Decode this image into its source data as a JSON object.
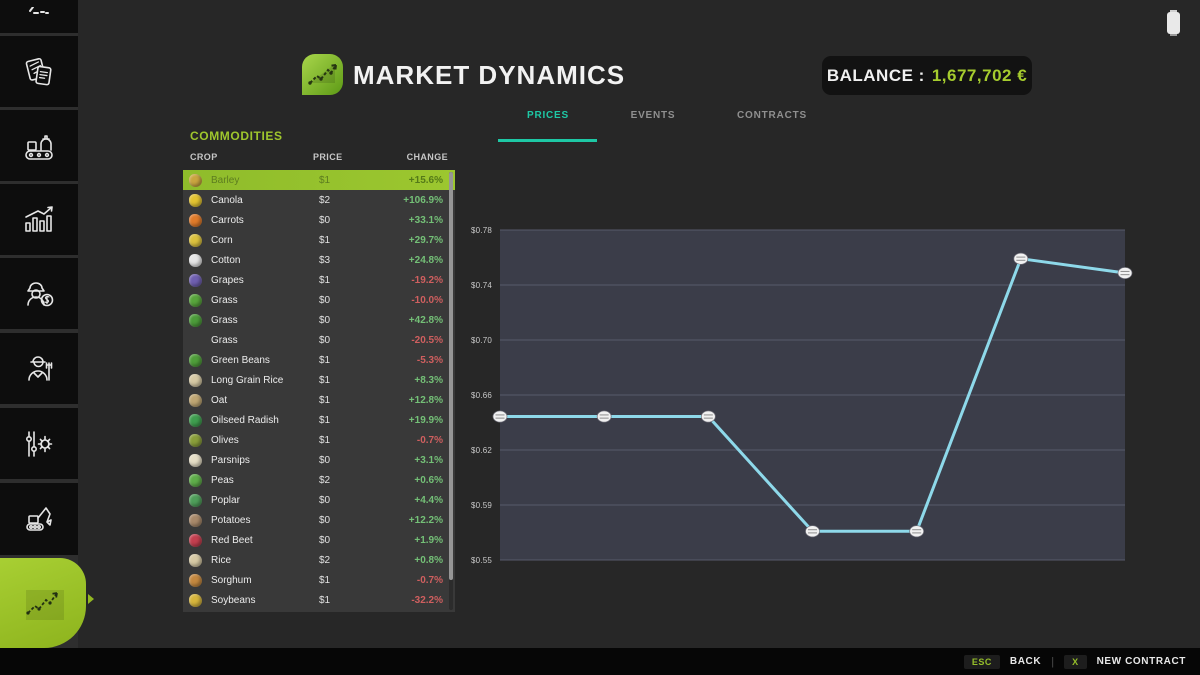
{
  "header": {
    "title": "MARKET DYNAMICS",
    "balance_label": "BALANCE :",
    "balance_value": "1,677,702 €"
  },
  "tabs": [
    {
      "label": "PRICES",
      "active": true
    },
    {
      "label": "EVENTS",
      "active": false
    },
    {
      "label": "CONTRACTS",
      "active": false
    }
  ],
  "commodities": {
    "section_title": "COMMODITIES",
    "columns": [
      "CROP",
      "PRICE",
      "CHANGE"
    ],
    "rows": [
      {
        "name": "Barley",
        "price": "$1",
        "change": "+15.6%",
        "direction": "up",
        "selected": true,
        "icon_color": "#c9a53f"
      },
      {
        "name": "Canola",
        "price": "$2",
        "change": "+106.9%",
        "direction": "up",
        "selected": false,
        "icon_color": "#e3c431"
      },
      {
        "name": "Carrots",
        "price": "$0",
        "change": "+33.1%",
        "direction": "up",
        "selected": false,
        "icon_color": "#e07b2a"
      },
      {
        "name": "Corn",
        "price": "$1",
        "change": "+29.7%",
        "direction": "up",
        "selected": false,
        "icon_color": "#dcc23e"
      },
      {
        "name": "Cotton",
        "price": "$3",
        "change": "+24.8%",
        "direction": "up",
        "selected": false,
        "icon_color": "#e6e6e6"
      },
      {
        "name": "Grapes",
        "price": "$1",
        "change": "-19.2%",
        "direction": "down",
        "selected": false,
        "icon_color": "#6f5fb0"
      },
      {
        "name": "Grass",
        "price": "$0",
        "change": "-10.0%",
        "direction": "down",
        "selected": false,
        "icon_color": "#58a53c"
      },
      {
        "name": "Grass",
        "price": "$0",
        "change": "+42.8%",
        "direction": "up",
        "selected": false,
        "icon_color": "#4c9c3a"
      },
      {
        "name": "Grass",
        "price": "$0",
        "change": "-20.5%",
        "direction": "down",
        "selected": false,
        "icon_color": null
      },
      {
        "name": "Green Beans",
        "price": "$1",
        "change": "-5.3%",
        "direction": "down",
        "selected": false,
        "icon_color": "#4f9e3a"
      },
      {
        "name": "Long Grain Rice",
        "price": "$1",
        "change": "+8.3%",
        "direction": "up",
        "selected": false,
        "icon_color": "#d6c9a4"
      },
      {
        "name": "Oat",
        "price": "$1",
        "change": "+12.8%",
        "direction": "up",
        "selected": false,
        "icon_color": "#bfa673"
      },
      {
        "name": "Oilseed Radish",
        "price": "$1",
        "change": "+19.9%",
        "direction": "up",
        "selected": false,
        "icon_color": "#3f9e4f"
      },
      {
        "name": "Olives",
        "price": "$1",
        "change": "-0.7%",
        "direction": "down",
        "selected": false,
        "icon_color": "#8a9e3a"
      },
      {
        "name": "Parsnips",
        "price": "$0",
        "change": "+3.1%",
        "direction": "up",
        "selected": false,
        "icon_color": "#e6dec6"
      },
      {
        "name": "Peas",
        "price": "$2",
        "change": "+0.6%",
        "direction": "up",
        "selected": false,
        "icon_color": "#5fae4a"
      },
      {
        "name": "Poplar",
        "price": "$0",
        "change": "+4.4%",
        "direction": "up",
        "selected": false,
        "icon_color": "#4f9e5a"
      },
      {
        "name": "Potatoes",
        "price": "$0",
        "change": "+12.2%",
        "direction": "up",
        "selected": false,
        "icon_color": "#a8896a"
      },
      {
        "name": "Red Beet",
        "price": "$0",
        "change": "+1.9%",
        "direction": "up",
        "selected": false,
        "icon_color": "#c43f4f"
      },
      {
        "name": "Rice",
        "price": "$2",
        "change": "+0.8%",
        "direction": "up",
        "selected": false,
        "icon_color": "#d6c9a4"
      },
      {
        "name": "Sorghum",
        "price": "$1",
        "change": "-0.7%",
        "direction": "down",
        "selected": false,
        "icon_color": "#c4883f"
      },
      {
        "name": "Soybeans",
        "price": "$1",
        "change": "-32.2%",
        "direction": "down",
        "selected": false,
        "icon_color": "#d6b53c"
      }
    ]
  },
  "chart_data": {
    "type": "line",
    "title": "",
    "xlabel": "",
    "ylabel": "",
    "x": [
      1,
      2,
      3,
      4,
      5,
      6,
      7
    ],
    "values": [
      0.65,
      0.65,
      0.65,
      0.57,
      0.57,
      0.76,
      0.75
    ],
    "y_ticks": [
      "$0.78",
      "$0.74",
      "$0.70",
      "$0.66",
      "$0.62",
      "$0.59",
      "$0.55"
    ],
    "ylim": [
      0.55,
      0.78
    ],
    "grid": true,
    "legend": "none",
    "line_color": "#8ed9ea",
    "marker_style": "white-disc",
    "plot_bg": "#3b3d49",
    "grid_color": "#575a6b"
  },
  "sidebar": {
    "items": [
      {
        "icon": "partial-top-icon",
        "active": false
      },
      {
        "icon": "documents-icon",
        "active": false
      },
      {
        "icon": "production-icon",
        "active": false
      },
      {
        "icon": "statistics-icon",
        "active": false
      },
      {
        "icon": "finances-icon",
        "active": false
      },
      {
        "icon": "farmer-icon",
        "active": false
      },
      {
        "icon": "settings-icon",
        "active": false
      },
      {
        "icon": "construction-icon",
        "active": false
      },
      {
        "icon": "market-dynamics-icon",
        "active": true
      }
    ]
  },
  "status_icons": {
    "top_right": "battery-icon"
  },
  "footer": {
    "esc_key": "ESC",
    "back_label": "BACK",
    "divider": "|",
    "x_key": "X",
    "new_contract_label": "NEW CONTRACT"
  },
  "colors": {
    "brand_green": "#9dc522",
    "balance_value": "#a6cc2e",
    "tab_active": "#1ec8a5",
    "positive_change": "#74c077",
    "negative_change": "#cf5f5f",
    "selected_row_bg": "#8fbc2b",
    "chart_line": "#8ed9ea",
    "plot_background": "#3b3d49"
  }
}
